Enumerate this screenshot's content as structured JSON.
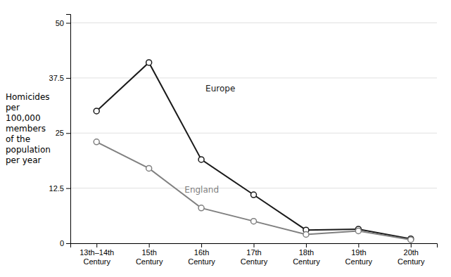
{
  "chart_data": {
    "type": "line",
    "categories": [
      "13th–14th\nCentury",
      "15th\nCentury",
      "16th\nCentury",
      "17th\nCentury",
      "18th\nCentury",
      "19th\nCentury",
      "20th\nCentury"
    ],
    "series": [
      {
        "color": "#1a1a1a",
        "values": [
          30,
          41,
          19,
          11,
          3.0,
          3.2,
          1.0
        ],
        "marker": "circle"
      },
      {
        "color": "#808080",
        "values": [
          23,
          17,
          8,
          5,
          2.0,
          2.8,
          0.8
        ],
        "marker": "circle"
      }
    ],
    "annotations": [
      {
        "text": "Europe",
        "x": 2,
        "y": 35,
        "color": "#1a1a1a"
      },
      {
        "text": "England",
        "x": 1.6,
        "y": 12.0,
        "color": "#808080"
      }
    ],
    "y_label": "Homicides\nper\n100,000\nmembers\nof the\npopulation\nper year",
    "ylim": [
      0,
      52
    ],
    "yticks": [
      0,
      12.5,
      25,
      37.5,
      50
    ],
    "grid": true
  }
}
